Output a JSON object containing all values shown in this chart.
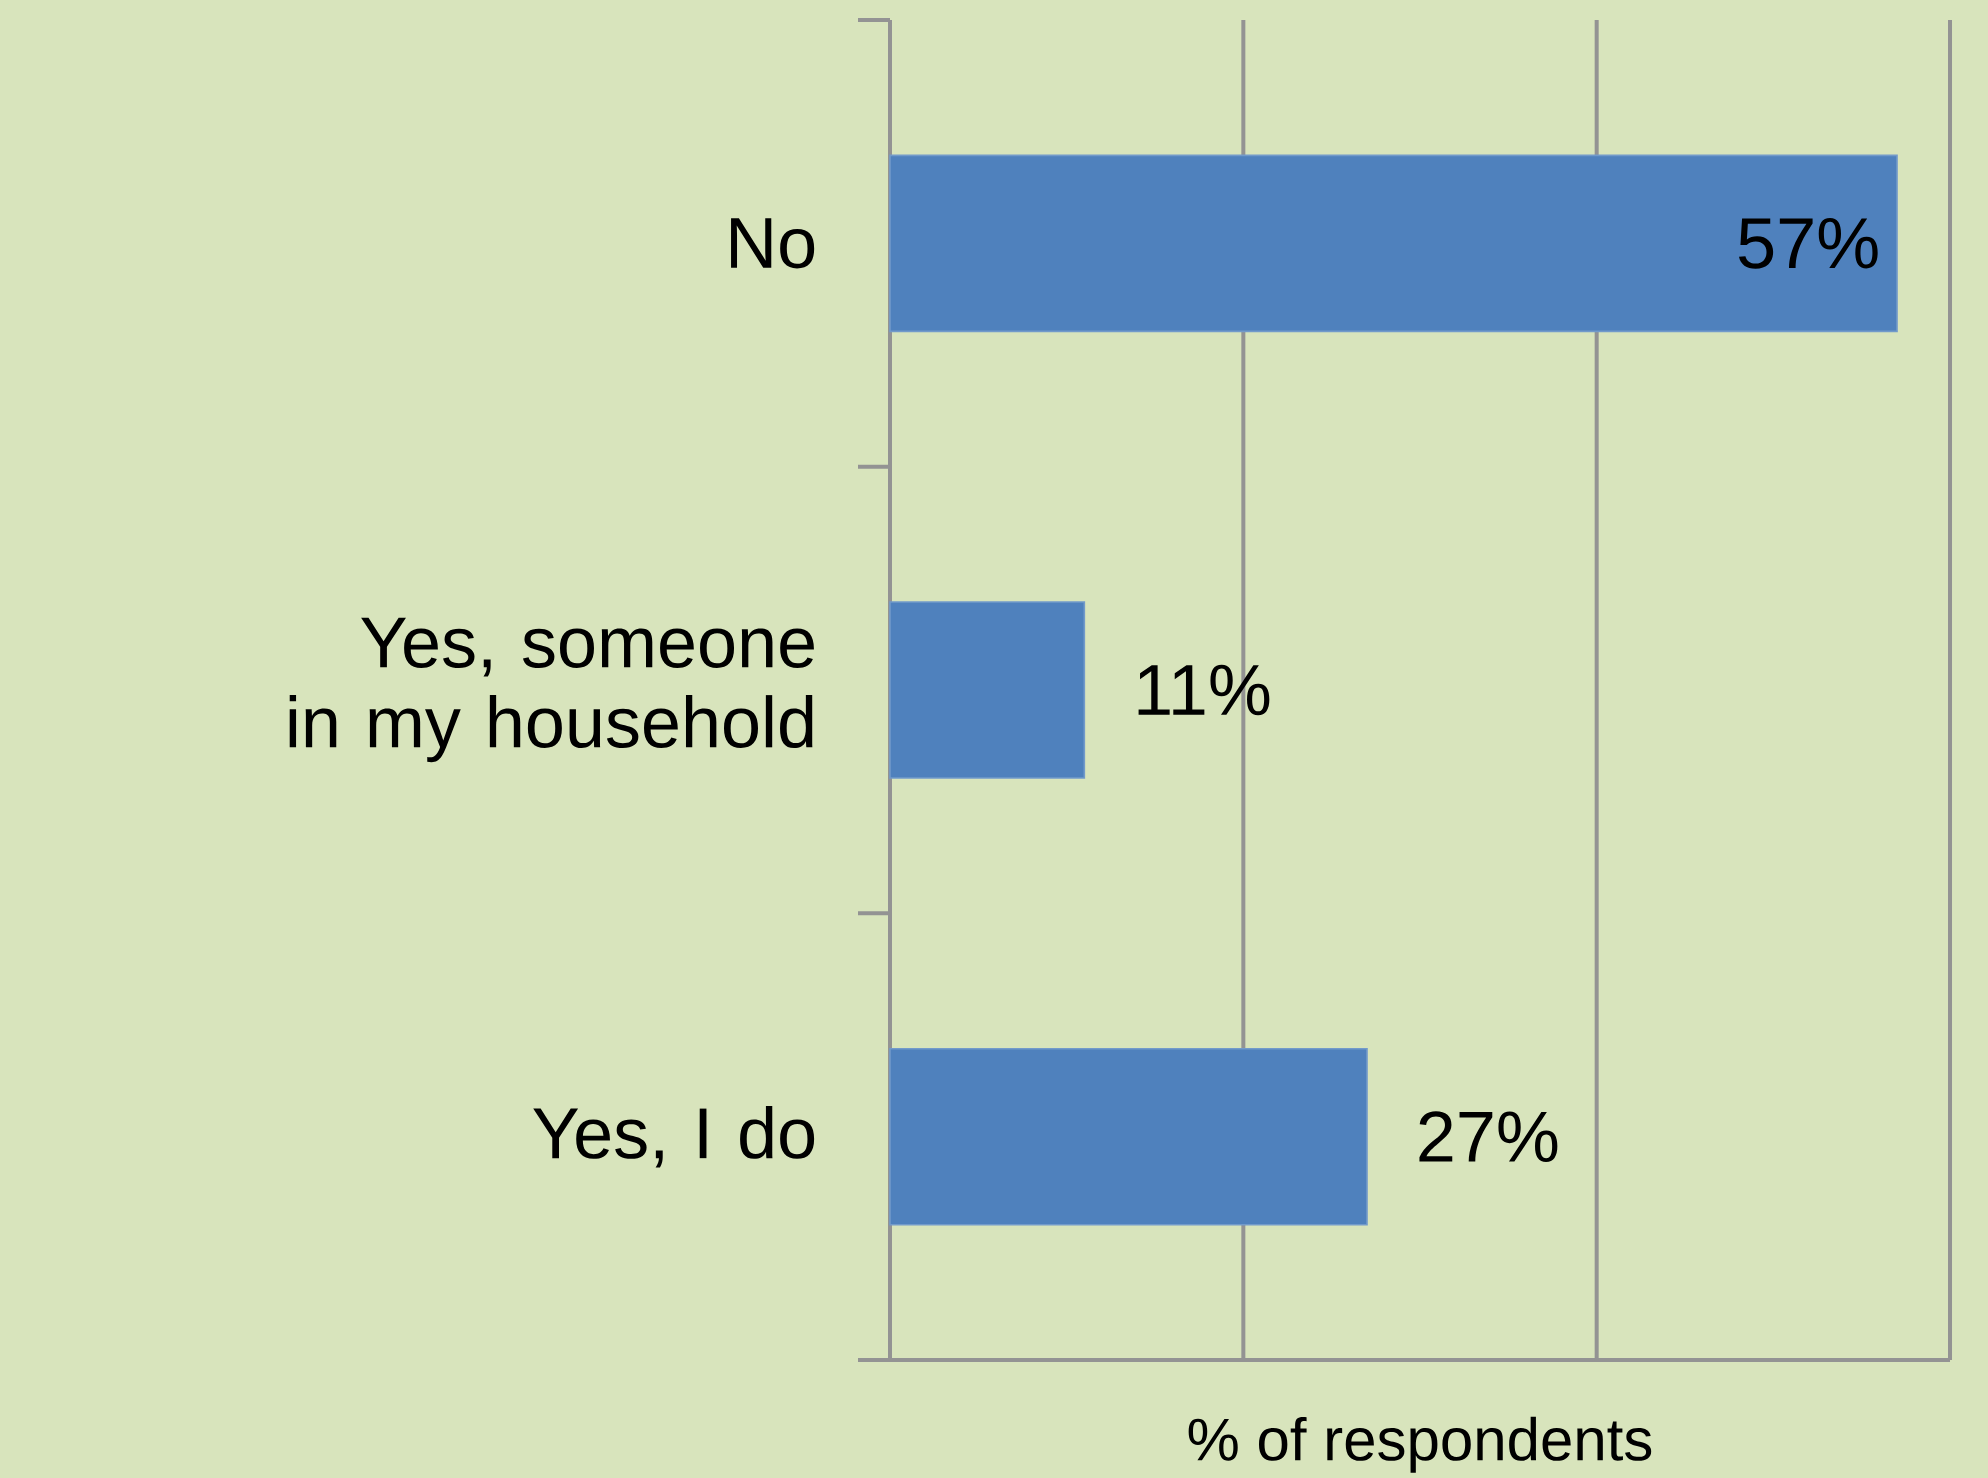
{
  "chart_data": {
    "type": "bar",
    "orientation": "horizontal",
    "xlabel": "% of respondents",
    "categories": [
      "No",
      "Yes, someone in my household",
      "Yes, I do"
    ],
    "values": [
      57,
      11,
      27
    ],
    "value_labels": [
      "57%",
      "11%",
      "27%"
    ],
    "color": "#4f81bd",
    "xlim": [
      0,
      60
    ],
    "xticks": [
      {
        "value": 0,
        "label": null
      },
      {
        "value": 20,
        "label": null
      },
      {
        "value": 40,
        "label": null
      },
      {
        "value": 60,
        "label": null
      }
    ],
    "grid": "x",
    "tick_labels": "y"
  }
}
